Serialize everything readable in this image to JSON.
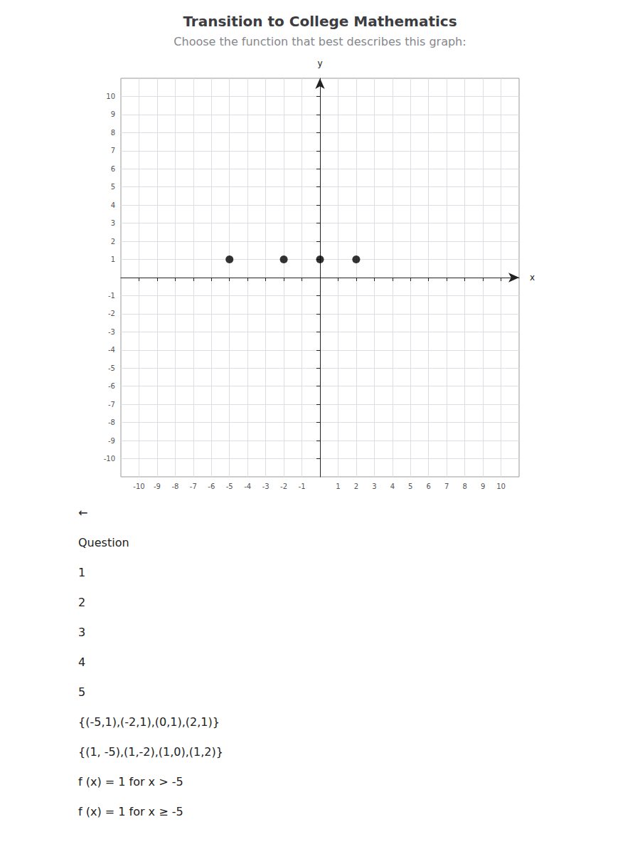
{
  "chart_data": {
    "type": "scatter",
    "title": "Transition to College Mathematics",
    "subtitle": "Choose the function that best describes this graph:",
    "x_label": "x",
    "y_label": "y",
    "x": [
      -5,
      -2,
      0,
      2
    ],
    "values": [
      1,
      1,
      1,
      1
    ],
    "color": "#000000",
    "marker": "circle",
    "xlim": [
      -11,
      11
    ],
    "ylim": [
      -11,
      11
    ],
    "xticks": [
      -10,
      -9,
      -8,
      -7,
      -6,
      -5,
      -4,
      -3,
      -2,
      -1,
      1,
      2,
      3,
      4,
      5,
      6,
      7,
      8,
      9,
      10
    ],
    "yticks": [
      -10,
      -9,
      -8,
      -7,
      -6,
      -5,
      -4,
      -3,
      -2,
      -1,
      1,
      2,
      3,
      4,
      5,
      6,
      7,
      8,
      9,
      10
    ],
    "grid": true,
    "annotations": [
      "←",
      "Question",
      "1",
      "2",
      "3",
      "4",
      "5",
      "{(-5,1),(-2,1),(0,1),(2,1)}",
      "{(1, -5),(1,-2),(1,0),(1,2)}",
      "f (x) = 1 for x > -5",
      "f (x) = 1 for x ≥ -5"
    ]
  }
}
